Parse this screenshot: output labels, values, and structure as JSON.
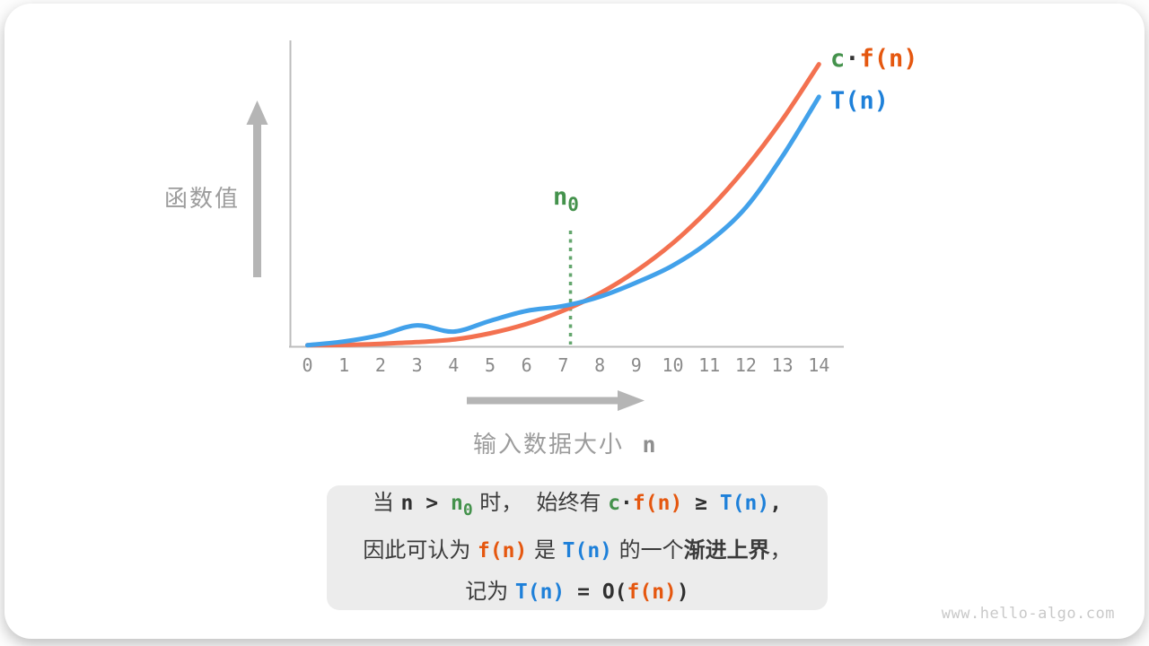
{
  "watermark": "www.hello-algo.com",
  "legend": {
    "cfn": {
      "c": "c",
      "dot": "·",
      "fn": "f(n)"
    },
    "tn": "T(n)"
  },
  "chart_data": {
    "type": "line",
    "title": "",
    "ylabel": "函数值",
    "xlabel": "输入数据大小",
    "xlabel_var": "n",
    "x_ticks": [
      "0",
      "1",
      "2",
      "3",
      "4",
      "5",
      "6",
      "7",
      "8",
      "9",
      "10",
      "11",
      "12",
      "13",
      "14"
    ],
    "x_range": [
      0,
      14
    ],
    "ylim": [
      0,
      100
    ],
    "grid": false,
    "legend_position": "top-right",
    "n0_x": 7.2,
    "n0_label": {
      "base": "n",
      "sub": "0"
    },
    "series": [
      {
        "name": "c·f(n)",
        "color": "#F37150",
        "values": [
          0.4,
          0.5,
          0.9,
          1.5,
          2.4,
          4.6,
          7.9,
          12.6,
          18.7,
          26.6,
          36.4,
          48.5,
          63.0,
          80.0,
          99.5
        ]
      },
      {
        "name": "T(n)",
        "color": "#42A1EA",
        "values": [
          0.4,
          1.7,
          4.0,
          7.4,
          5.2,
          9.0,
          12.5,
          14.2,
          17.5,
          22.5,
          28.5,
          37.0,
          49.0,
          67.0,
          88.0
        ]
      }
    ]
  },
  "explanation": {
    "lines": [
      [
        {
          "t": "当 ",
          "c": "cjk"
        },
        {
          "t": "n",
          "c": "mono dark"
        },
        {
          "t": " > ",
          "c": "mono dark"
        },
        {
          "t": "n",
          "c": "mono green"
        },
        {
          "t": "0",
          "c": "mono green sub"
        },
        {
          "t": " 时，",
          "c": "cjk"
        },
        {
          "t": "  始终有 ",
          "c": "cjk"
        },
        {
          "t": "c",
          "c": "mono green"
        },
        {
          "t": "·",
          "c": "mono dark"
        },
        {
          "t": "f(n)",
          "c": "mono orange"
        },
        {
          "t": " ≥ ",
          "c": "mono dark"
        },
        {
          "t": "T(n)",
          "c": "mono blue"
        },
        {
          "t": ",",
          "c": "mono dark"
        }
      ],
      [
        {
          "t": "因此可认为 ",
          "c": "cjk"
        },
        {
          "t": "f(n)",
          "c": "mono orange"
        },
        {
          "t": " 是 ",
          "c": "cjk"
        },
        {
          "t": "T(n)",
          "c": "mono blue"
        },
        {
          "t": " 的一个",
          "c": "cjk"
        },
        {
          "t": "渐进上界",
          "c": "cjk b"
        },
        {
          "t": "，",
          "c": "cjk"
        }
      ],
      [
        {
          "t": "记为 ",
          "c": "cjk"
        },
        {
          "t": "T(n)",
          "c": "mono blue"
        },
        {
          "t": " = ",
          "c": "mono dark"
        },
        {
          "t": "O(",
          "c": "mono dark"
        },
        {
          "t": "f(n)",
          "c": "mono orange"
        },
        {
          "t": ")",
          "c": "mono dark"
        }
      ]
    ]
  }
}
